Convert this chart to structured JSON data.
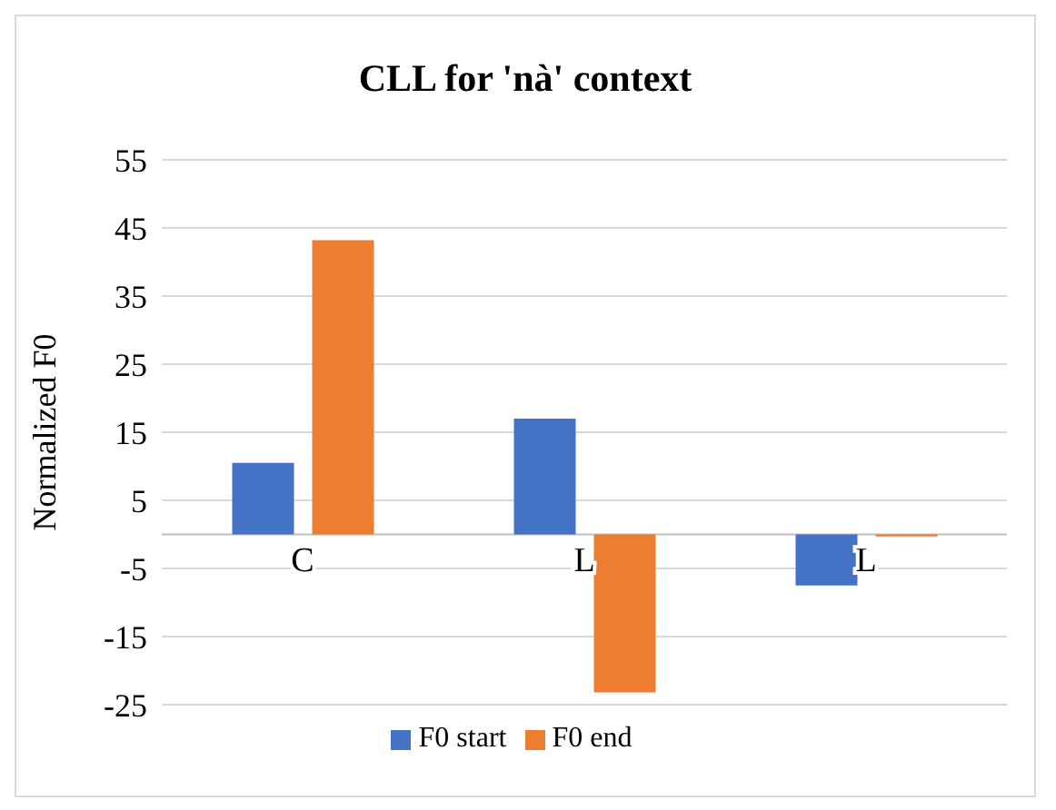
{
  "chart_data": {
    "type": "bar",
    "title": "CLL for 'nà' context",
    "ylabel": "Normalized F0",
    "categories": [
      "C",
      "L",
      "L"
    ],
    "series": [
      {
        "name": "F0 start",
        "color": "#4472c4",
        "values": [
          10.5,
          17,
          -7.5
        ]
      },
      {
        "name": "F0 end",
        "color": "#ed7d31",
        "values": [
          43.2,
          -23.2,
          -0.3
        ]
      }
    ],
    "ylim": [
      -25,
      55
    ],
    "yticks": [
      -25,
      -15,
      -5,
      5,
      15,
      25,
      35,
      45,
      55
    ],
    "grid": "y",
    "legend": "bottom"
  }
}
